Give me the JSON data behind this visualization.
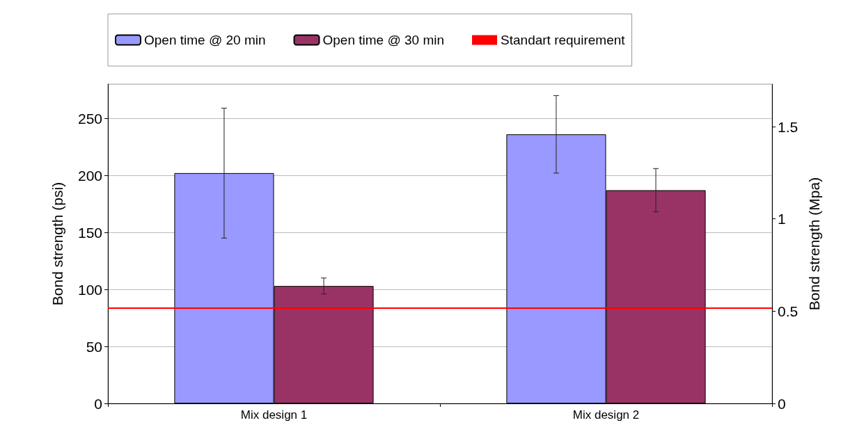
{
  "chart_data": {
    "type": "bar",
    "categories": [
      "Mix design 1",
      "Mix design 2"
    ],
    "series": [
      {
        "name": "Open time @ 20 min",
        "color": "#9999ff",
        "values": [
          202,
          236
        ],
        "errors": [
          57,
          34
        ]
      },
      {
        "name": "Open time @ 30 min",
        "color": "#993366",
        "values": [
          103,
          187
        ],
        "errors": [
          7,
          19
        ]
      }
    ],
    "ylabel": "Bond strength (psi)",
    "y2label": "Bond strength (Mpa)",
    "ylim": [
      0,
      280
    ],
    "yticks": [
      0,
      50,
      100,
      150,
      200,
      250
    ],
    "y2lim": [
      0,
      1.73
    ],
    "y2ticks": [
      0,
      0.5,
      1,
      1.5
    ],
    "ref_lines": [
      {
        "axis": "y",
        "value": 84,
        "label": "Standart requirement",
        "color": "#ff0000"
      }
    ],
    "grid": "y",
    "legend": "top"
  }
}
